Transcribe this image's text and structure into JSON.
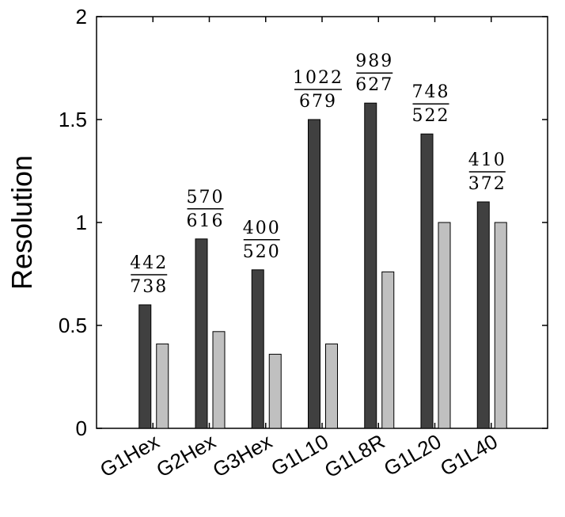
{
  "chart_data": {
    "type": "bar",
    "title": "",
    "xlabel": "",
    "ylabel": "Resolution",
    "ylim": [
      0,
      2
    ],
    "yticks": [
      "0",
      "0.5",
      "1",
      "1.5",
      "2"
    ],
    "categories": [
      "G1Hex",
      "G2Hex",
      "G3Hex",
      "G1L10",
      "G1L8R",
      "G1L20",
      "G1L40"
    ],
    "series": [
      {
        "color": "#404040",
        "values": [
          0.6,
          0.92,
          0.77,
          1.5,
          1.58,
          1.43,
          1.1
        ]
      },
      {
        "color": "#c0c0c0",
        "values": [
          0.41,
          0.47,
          0.36,
          0.41,
          0.76,
          1.0,
          1.0
        ]
      }
    ],
    "annotations": [
      {
        "numerator": "442",
        "denominator": "738"
      },
      {
        "numerator": "570",
        "denominator": "616"
      },
      {
        "numerator": "400",
        "denominator": "520"
      },
      {
        "numerator": "1022",
        "denominator": "679"
      },
      {
        "numerator": "989",
        "denominator": "627"
      },
      {
        "numerator": "748",
        "denominator": "522"
      },
      {
        "numerator": "410",
        "denominator": "372"
      }
    ],
    "grid": false,
    "legend": "none"
  }
}
